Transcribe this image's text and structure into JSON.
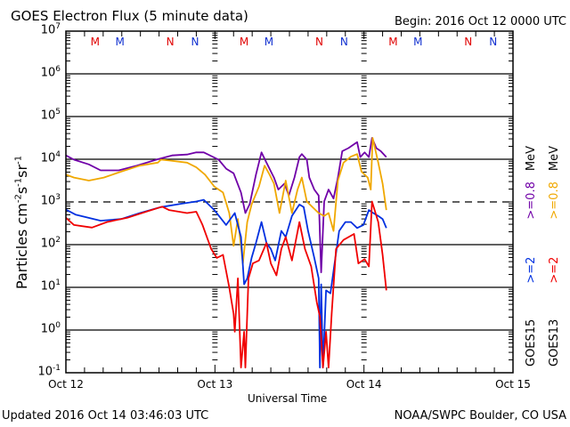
{
  "header": {
    "title": "GOES Electron Flux (5 minute data)",
    "begin": "Begin: 2016 Oct 12 0000 UTC"
  },
  "footer": {
    "updated": "Updated 2016 Oct 14 03:46:03 UTC",
    "credit": "NOAA/SWPC Boulder, CO USA"
  },
  "markers": [
    {
      "label": "M",
      "color": "#e00000",
      "hour": 4.7
    },
    {
      "label": "M",
      "color": "#1030d0",
      "hour": 8.7
    },
    {
      "label": "N",
      "color": "#e00000",
      "hour": 16.8
    },
    {
      "label": "N",
      "color": "#1030d0",
      "hour": 20.8
    },
    {
      "label": "M",
      "color": "#e00000",
      "hour": 28.7
    },
    {
      "label": "M",
      "color": "#1030d0",
      "hour": 32.7
    },
    {
      "label": "N",
      "color": "#e00000",
      "hour": 40.8
    },
    {
      "label": "N",
      "color": "#1030d0",
      "hour": 44.8
    },
    {
      "label": "M",
      "color": "#e00000",
      "hour": 52.7
    },
    {
      "label": "M",
      "color": "#1030d0",
      "hour": 56.7
    },
    {
      "label": "N",
      "color": "#e00000",
      "hour": 64.8
    },
    {
      "label": "N",
      "color": "#1030d0",
      "hour": 68.8
    }
  ],
  "legend": {
    "goes15": {
      "sat": "GOES15",
      "low": ">=2",
      "high": ">=0.8",
      "unit": "MeV",
      "low_color": "#0030e0",
      "high_color": "#7000a8"
    },
    "goes13": {
      "sat": "GOES13",
      "low": ">=2",
      "high": ">=0.8",
      "unit": "MeV",
      "low_color": "#f00000",
      "high_color": "#f0a800"
    }
  },
  "chart_data": {
    "type": "line",
    "title": "GOES Electron Flux (5 minute data)",
    "xlabel": "Universal Time",
    "ylabel": {
      "main": "Particles cm",
      "e1": "-2",
      "s": "s",
      "e2": "-1",
      "sr": "sr",
      "e3": "-1"
    },
    "x_unit": "hours since 2016 Oct 12 0000 UTC",
    "xlim": [
      0,
      72
    ],
    "xticks": [
      {
        "hour": 0,
        "label": "Oct 12"
      },
      {
        "hour": 24,
        "label": "Oct 13"
      },
      {
        "hour": 48,
        "label": "Oct 14"
      },
      {
        "hour": 72,
        "label": "Oct 15"
      }
    ],
    "y_scale": "log10",
    "ylim_exp": [
      -1,
      7
    ],
    "yticks": [
      {
        "base": "10",
        "exp": "7"
      },
      {
        "base": "10",
        "exp": "6"
      },
      {
        "base": "10",
        "exp": "5"
      },
      {
        "base": "10",
        "exp": "4"
      },
      {
        "base": "10",
        "exp": "3"
      },
      {
        "base": "10",
        "exp": "2"
      },
      {
        "base": "10",
        "exp": "1"
      },
      {
        "base": "10",
        "exp": "0"
      },
      {
        "base": "10",
        "exp": "-1"
      }
    ],
    "threshold_exp": 3,
    "grid": true,
    "series": [
      {
        "name": "GOES15 >=0.8 MeV",
        "color": "#7000a8",
        "points_hour_log10": [
          [
            0,
            4.09
          ],
          [
            1.3,
            3.99
          ],
          [
            3.7,
            3.88
          ],
          [
            5.6,
            3.74
          ],
          [
            8.5,
            3.74
          ],
          [
            11.4,
            3.85
          ],
          [
            14.8,
            4.0
          ],
          [
            17.1,
            4.09
          ],
          [
            19.5,
            4.11
          ],
          [
            21,
            4.16
          ],
          [
            22.2,
            4.16
          ],
          [
            24.6,
            3.99
          ],
          [
            25.8,
            3.78
          ],
          [
            27,
            3.67
          ],
          [
            28.2,
            3.22
          ],
          [
            28.9,
            2.74
          ],
          [
            29.6,
            2.95
          ],
          [
            30.6,
            3.64
          ],
          [
            31.5,
            4.16
          ],
          [
            32.3,
            3.92
          ],
          [
            33.5,
            3.57
          ],
          [
            34.2,
            3.29
          ],
          [
            35.2,
            3.43
          ],
          [
            35.9,
            3.15
          ],
          [
            36.8,
            3.57
          ],
          [
            37.6,
            4.05
          ],
          [
            38.0,
            4.12
          ],
          [
            38.8,
            3.99
          ],
          [
            39.2,
            3.57
          ],
          [
            40.0,
            3.29
          ],
          [
            40.7,
            3.15
          ],
          [
            41.1,
            1.35
          ],
          [
            41.6,
            3.01
          ],
          [
            42.3,
            3.29
          ],
          [
            43.1,
            3.08
          ],
          [
            43.8,
            3.57
          ],
          [
            44.5,
            4.19
          ],
          [
            45.5,
            4.26
          ],
          [
            46.9,
            4.4
          ],
          [
            47.4,
            4.05
          ],
          [
            48.1,
            4.16
          ],
          [
            48.8,
            4.05
          ],
          [
            49.3,
            4.5
          ],
          [
            50.0,
            4.26
          ],
          [
            50.7,
            4.19
          ],
          [
            51.6,
            4.05
          ]
        ]
      },
      {
        "name": "GOES13 >=0.8 MeV",
        "color": "#f0a800",
        "points_hour_log10": [
          [
            0,
            3.64
          ],
          [
            1.3,
            3.57
          ],
          [
            3.7,
            3.5
          ],
          [
            6.1,
            3.57
          ],
          [
            8.9,
            3.71
          ],
          [
            11.9,
            3.85
          ],
          [
            14.8,
            3.92
          ],
          [
            15.3,
            3.99
          ],
          [
            16.6,
            3.97
          ],
          [
            19.5,
            3.92
          ],
          [
            21.0,
            3.81
          ],
          [
            22.4,
            3.64
          ],
          [
            23.9,
            3.36
          ],
          [
            25.3,
            3.22
          ],
          [
            26.3,
            2.74
          ],
          [
            27.0,
            1.97
          ],
          [
            27.7,
            2.6
          ],
          [
            28.5,
            1.56
          ],
          [
            29.2,
            2.53
          ],
          [
            29.9,
            2.94
          ],
          [
            31.1,
            3.36
          ],
          [
            32.0,
            3.85
          ],
          [
            32.8,
            3.64
          ],
          [
            33.5,
            3.43
          ],
          [
            34.4,
            2.74
          ],
          [
            35.4,
            3.5
          ],
          [
            36.4,
            2.74
          ],
          [
            37.3,
            3.29
          ],
          [
            38.0,
            3.57
          ],
          [
            38.8,
            3.01
          ],
          [
            39.7,
            2.88
          ],
          [
            40.7,
            2.74
          ],
          [
            41.6,
            2.67
          ],
          [
            42.3,
            2.74
          ],
          [
            43.1,
            2.32
          ],
          [
            43.8,
            3.5
          ],
          [
            44.7,
            3.92
          ],
          [
            45.9,
            4.06
          ],
          [
            46.9,
            4.12
          ],
          [
            47.6,
            3.71
          ],
          [
            48.6,
            3.57
          ],
          [
            49.1,
            3.29
          ],
          [
            49.4,
            4.5
          ],
          [
            50.3,
            3.92
          ],
          [
            51.0,
            3.43
          ],
          [
            51.6,
            2.81
          ]
        ]
      },
      {
        "name": "GOES15 >=2 MeV",
        "color": "#0030e0",
        "points_hour_log10": [
          [
            0,
            2.82
          ],
          [
            1.6,
            2.7
          ],
          [
            5.6,
            2.56
          ],
          [
            8.9,
            2.6
          ],
          [
            11.9,
            2.74
          ],
          [
            15.3,
            2.88
          ],
          [
            18.7,
            2.96
          ],
          [
            21.0,
            3.01
          ],
          [
            22.2,
            3.05
          ],
          [
            23.9,
            2.81
          ],
          [
            25.8,
            2.46
          ],
          [
            27.2,
            2.74
          ],
          [
            28.2,
            2.18
          ],
          [
            28.7,
            1.07
          ],
          [
            29.2,
            1.21
          ],
          [
            29.9,
            1.69
          ],
          [
            30.6,
            2.04
          ],
          [
            31.5,
            2.53
          ],
          [
            32.3,
            2.04
          ],
          [
            33.0,
            1.9
          ],
          [
            33.7,
            1.63
          ],
          [
            34.7,
            2.32
          ],
          [
            35.4,
            2.18
          ],
          [
            36.4,
            2.67
          ],
          [
            37.6,
            2.94
          ],
          [
            38.3,
            2.88
          ],
          [
            39.0,
            2.32
          ],
          [
            40.0,
            1.69
          ],
          [
            40.7,
            1.21
          ],
          [
            40.9,
            -0.88
          ],
          [
            41.1,
            1.07
          ],
          [
            41.4,
            -0.88
          ],
          [
            41.9,
            0.93
          ],
          [
            42.6,
            0.86
          ],
          [
            43.2,
            1.49
          ],
          [
            44.0,
            2.32
          ],
          [
            45.0,
            2.53
          ],
          [
            45.9,
            2.53
          ],
          [
            46.9,
            2.39
          ],
          [
            47.9,
            2.46
          ],
          [
            48.8,
            2.81
          ],
          [
            49.5,
            2.74
          ],
          [
            50.3,
            2.67
          ],
          [
            51.0,
            2.6
          ],
          [
            51.6,
            2.39
          ]
        ]
      },
      {
        "name": "GOES13 >=2 MeV",
        "color": "#f00000",
        "points_hour_log10": [
          [
            0,
            2.63
          ],
          [
            1.3,
            2.46
          ],
          [
            4.2,
            2.4
          ],
          [
            6.6,
            2.53
          ],
          [
            9.9,
            2.63
          ],
          [
            13.3,
            2.79
          ],
          [
            15.5,
            2.89
          ],
          [
            16.6,
            2.81
          ],
          [
            19.5,
            2.74
          ],
          [
            21.0,
            2.77
          ],
          [
            22.0,
            2.46
          ],
          [
            23.4,
            1.9
          ],
          [
            24.3,
            1.69
          ],
          [
            25.3,
            1.76
          ],
          [
            26.3,
            1.0
          ],
          [
            27.0,
            0.38
          ],
          [
            27.2,
            -0.04
          ],
          [
            27.7,
            1.21
          ],
          [
            28.2,
            -0.88
          ],
          [
            28.7,
            -0.04
          ],
          [
            28.9,
            -0.88
          ],
          [
            29.4,
            1.21
          ],
          [
            30.1,
            1.56
          ],
          [
            31.1,
            1.63
          ],
          [
            32.3,
            2.04
          ],
          [
            33.0,
            1.56
          ],
          [
            33.9,
            1.28
          ],
          [
            34.7,
            1.9
          ],
          [
            35.4,
            2.18
          ],
          [
            36.4,
            1.63
          ],
          [
            37.6,
            2.53
          ],
          [
            38.5,
            1.9
          ],
          [
            39.5,
            1.49
          ],
          [
            40.4,
            0.65
          ],
          [
            40.9,
            0.31
          ],
          [
            41.4,
            -0.88
          ],
          [
            41.9,
            -0.04
          ],
          [
            42.3,
            -0.88
          ],
          [
            42.8,
            0.38
          ],
          [
            43.5,
            1.9
          ],
          [
            44.7,
            2.11
          ],
          [
            46.4,
            2.25
          ],
          [
            47.1,
            1.56
          ],
          [
            48.1,
            1.66
          ],
          [
            48.8,
            1.49
          ],
          [
            49.3,
            3.01
          ],
          [
            50.3,
            2.53
          ],
          [
            51.0,
            1.76
          ],
          [
            51.6,
            0.93
          ]
        ]
      }
    ]
  }
}
